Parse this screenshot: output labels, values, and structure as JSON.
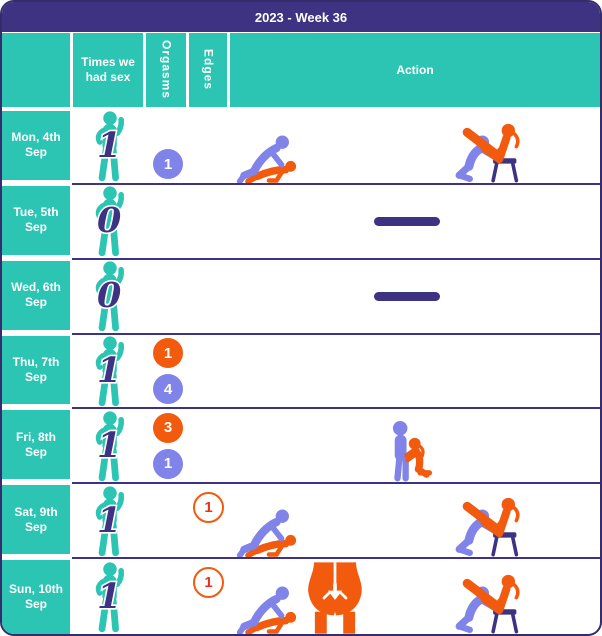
{
  "title": "2023 - Week 36",
  "palette": {
    "teal": "#2cc4b3",
    "indigo": "#3e3282",
    "periwinkle": "#8084e8",
    "orange": "#f25a0d",
    "red": "#e8321c"
  },
  "columns": {
    "day": "",
    "times": "Times we had sex",
    "orgasms": "Orgasms",
    "edges": "Edges",
    "action": "Action"
  },
  "icons": {
    "figure": "person-holding-count-icon",
    "doggy": "doggy-position-icon",
    "rear": "rear-view-icon",
    "oral": "standing-oral-position-icon",
    "chair": "chair-recline-position-icon",
    "dash": "none-dash-icon"
  },
  "rows": [
    {
      "day": "Mon, 4th Sep",
      "times": "1",
      "orgasms_top": null,
      "orgasms_bottom": "1",
      "edges": null,
      "actions": [
        {
          "slot": 1,
          "icon": "doggy"
        },
        {
          "slot": 4,
          "icon": "chair"
        }
      ]
    },
    {
      "day": "Tue, 5th Sep",
      "times": "0",
      "orgasms_top": null,
      "orgasms_bottom": null,
      "edges": null,
      "actions": [
        {
          "slot": 3,
          "icon": "dash"
        }
      ]
    },
    {
      "day": "Wed, 6th Sep",
      "times": "0",
      "orgasms_top": null,
      "orgasms_bottom": null,
      "edges": null,
      "actions": [
        {
          "slot": 3,
          "icon": "dash"
        }
      ]
    },
    {
      "day": "Thu, 7th Sep",
      "times": "1",
      "orgasms_top": "1",
      "orgasms_bottom": "4",
      "edges": null,
      "actions": []
    },
    {
      "day": "Fri, 8th Sep",
      "times": "1",
      "orgasms_top": "3",
      "orgasms_bottom": "1",
      "edges": null,
      "actions": [
        {
          "slot": 3,
          "icon": "oral"
        }
      ]
    },
    {
      "day": "Sat, 9th Sep",
      "times": "1",
      "orgasms_top": null,
      "orgasms_bottom": null,
      "edges": "1",
      "actions": [
        {
          "slot": 1,
          "icon": "doggy"
        },
        {
          "slot": 4,
          "icon": "chair"
        }
      ]
    },
    {
      "day": "Sun, 10th Sep",
      "times": "1",
      "orgasms_top": null,
      "orgasms_bottom": null,
      "edges": "1",
      "actions": [
        {
          "slot": 1,
          "icon": "doggy"
        },
        {
          "slot": 2,
          "icon": "rear"
        },
        {
          "slot": 4,
          "icon": "chair"
        }
      ]
    }
  ]
}
